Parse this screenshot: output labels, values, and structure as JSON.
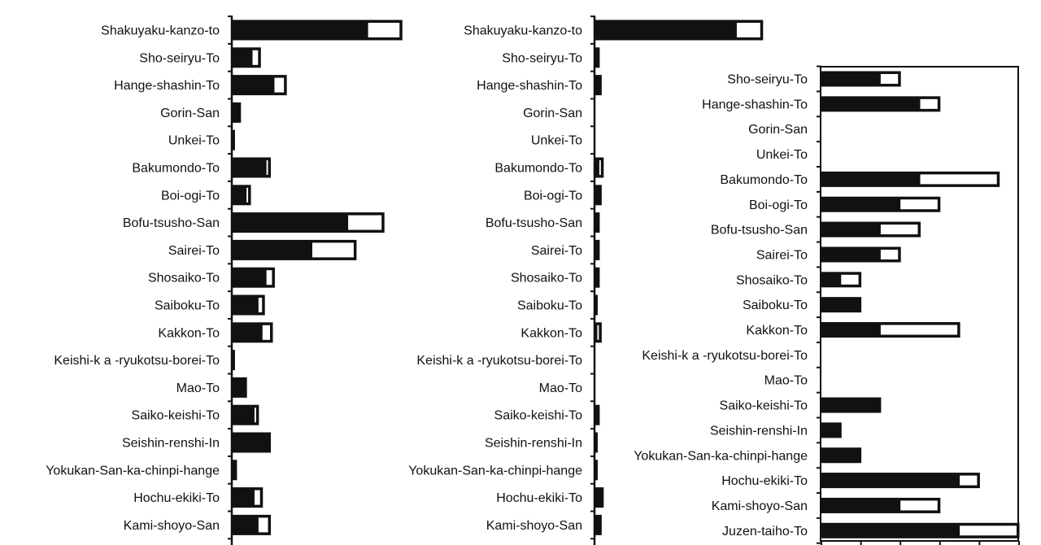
{
  "chart_data": [
    {
      "type": "bar",
      "orientation": "horizontal",
      "stacked": true,
      "categories": [
        "Shakuyaku-kanzo-to",
        "Sho-seiryu-To",
        "Hange-shashin-To",
        "Gorin-San",
        "Unkei-To",
        "Bakumondo-To",
        "Boi-ogi-To",
        "Bofu-tsusho-San",
        "Sairei-To",
        "Shosaiko-To",
        "Saiboku-To",
        "Kakkon-To",
        "Keishi-k a -ryukotsu-borei-To",
        "Mao-To",
        "Saiko-keishi-To",
        "Seishin-renshi-In",
        "Yokukan-San-ka-chinpi-hange",
        "Hochu-ekiki-To",
        "Kami-shoyo-San"
      ],
      "series": [
        {
          "fill": "#111111",
          "values": [
            68,
            10,
            21,
            4,
            1,
            17,
            7,
            58,
            40,
            17,
            13,
            15,
            1,
            7,
            11,
            19,
            2,
            11,
            13
          ]
        },
        {
          "fill": "#ffffff",
          "values": [
            17,
            4,
            6,
            0,
            0,
            2,
            2,
            18,
            22,
            4,
            3,
            5,
            0,
            0,
            2,
            0,
            0,
            4,
            6
          ]
        }
      ],
      "grid": false
    },
    {
      "type": "bar",
      "orientation": "horizontal",
      "stacked": true,
      "categories": [
        "Shakuyaku-kanzo-to",
        "Sho-seiryu-To",
        "Hange-shashin-To",
        "Gorin-San",
        "Unkei-To",
        "Bakumondo-To",
        "Boi-ogi-To",
        "Bofu-tsusho-San",
        "Sairei-To",
        "Shosaiko-To",
        "Saiboku-To",
        "Kakkon-To",
        "Keishi-k a -ryukotsu-borei-To",
        "Mao-To",
        "Saiko-keishi-To",
        "Seishin-renshi-In",
        "Yokukan-San-ka-chinpi-hange",
        "Hochu-ekiki-To",
        "Kami-shoyo-San"
      ],
      "series": [
        {
          "fill": "#111111",
          "values": [
            71,
            2,
            3,
            0,
            0,
            2,
            3,
            2,
            2,
            2,
            1,
            1,
            0,
            0,
            2,
            1,
            1,
            4,
            3
          ]
        },
        {
          "fill": "#ffffff",
          "values": [
            13,
            0,
            0,
            0,
            0,
            2,
            0,
            0,
            0,
            0,
            0,
            2,
            0,
            0,
            0,
            0,
            0,
            0,
            0
          ]
        }
      ],
      "grid": false
    },
    {
      "type": "bar",
      "orientation": "horizontal",
      "stacked": true,
      "categories": [
        "Sho-seiryu-To",
        "Hange-shashin-To",
        "Gorin-San",
        "Unkei-To",
        "Bakumondo-To",
        "Boi-ogi-To",
        "Bofu-tsusho-San",
        "Sairei-To",
        "Shosaiko-To",
        "Saiboku-To",
        "Kakkon-To",
        "Keishi-k a -ryukotsu-borei-To",
        "Mao-To",
        "Saiko-keishi-To",
        "Seishin-renshi-In",
        "Yokukan-San-ka-chinpi-hange",
        "Hochu-ekiki-To",
        "Kami-shoyo-San",
        "Juzen-taiho-To"
      ],
      "series": [
        {
          "fill": "#111111",
          "values": [
            3,
            5,
            0,
            0,
            5,
            4,
            3,
            3,
            1,
            2,
            3,
            0,
            0,
            3,
            1,
            2,
            7,
            4,
            7
          ]
        },
        {
          "fill": "#ffffff",
          "values": [
            1,
            1,
            0,
            0,
            4,
            2,
            2,
            1,
            1,
            0,
            4,
            0,
            0,
            0,
            0,
            0,
            1,
            2,
            3
          ]
        }
      ],
      "xlim": [
        0,
        10
      ],
      "grid": false,
      "framed": true
    }
  ]
}
